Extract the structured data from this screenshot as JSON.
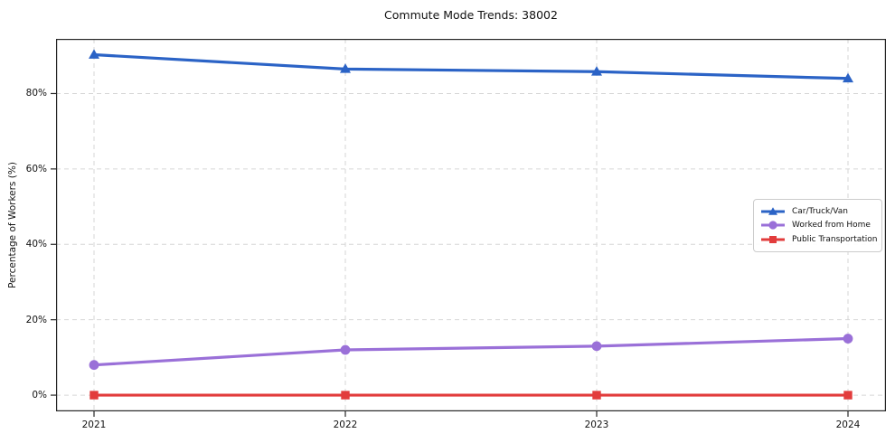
{
  "chart_data": {
    "type": "line",
    "title": "Commute Mode Trends: 38002",
    "xlabel": "",
    "ylabel": "Percentage of Workers (%)",
    "categories": [
      "2021",
      "2022",
      "2023",
      "2024"
    ],
    "series": [
      {
        "name": "Car/Truck/Van",
        "marker": "triangle",
        "color": "#2b63c6",
        "values": [
          90.3,
          86.5,
          85.8,
          84.0
        ]
      },
      {
        "name": "Worked from Home",
        "marker": "circle",
        "color": "#9a70d8",
        "values": [
          8.0,
          12.0,
          13.0,
          15.0
        ]
      },
      {
        "name": "Public Transportation",
        "marker": "square",
        "color": "#e23c3c",
        "values": [
          0.0,
          0.0,
          0.0,
          0.0
        ]
      }
    ],
    "yticks": [
      0,
      20,
      40,
      60,
      80
    ],
    "ytick_labels": [
      "0%",
      "20%",
      "40%",
      "60%",
      "80%"
    ],
    "ylim": [
      -4.3,
      94.5
    ],
    "grid": true,
    "legend_position": "right-middle"
  },
  "colors": {
    "background": "#ffffff",
    "grid": "#d6d6d6",
    "spine": "#262626",
    "text": "#111111",
    "legend_border": "#cccccc"
  }
}
